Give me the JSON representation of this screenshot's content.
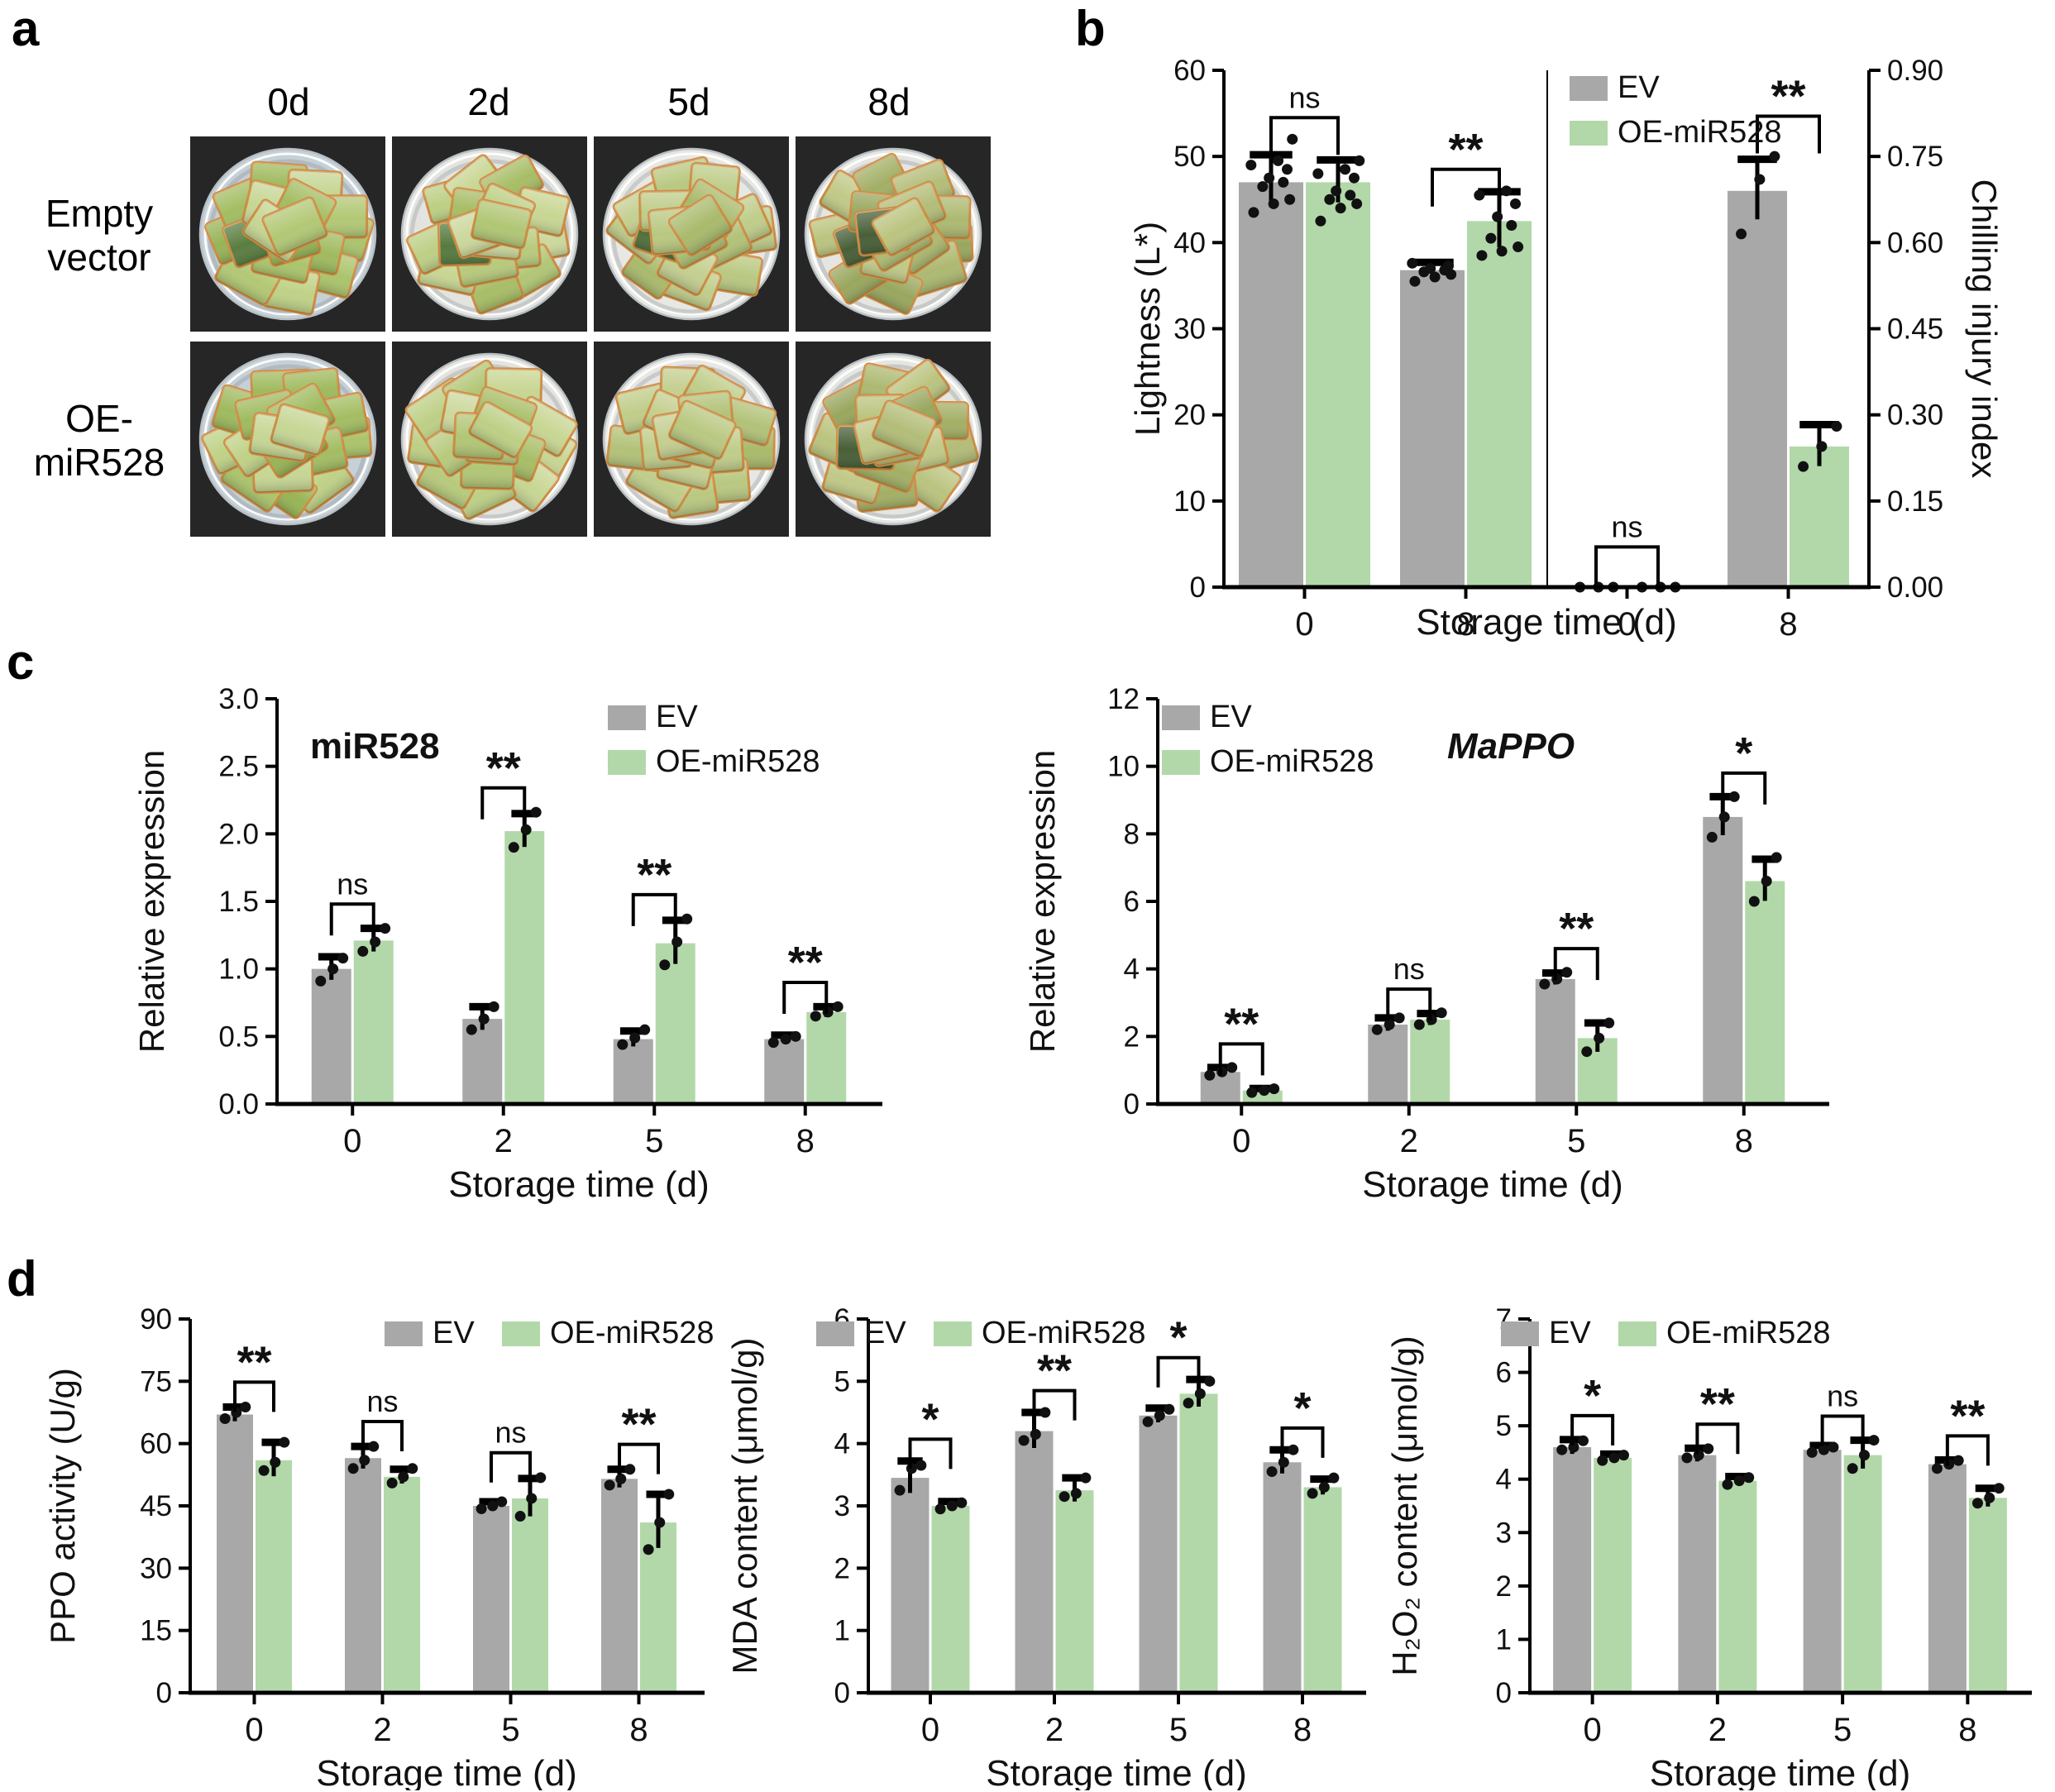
{
  "colors": {
    "ev": "#a8a8a8",
    "oe": "#b2d8a9",
    "dot": "#111111",
    "axis": "#000000"
  },
  "panel_a": {
    "label": "a",
    "col_headers": [
      "0d",
      "2d",
      "5d",
      "8d"
    ],
    "rows": [
      {
        "line1": "Empty",
        "line2": "vector"
      },
      {
        "line1": "OE-",
        "line2": "miR528"
      }
    ]
  },
  "panel_b": {
    "label": "b",
    "xlabel": "Storage time (d)"
  },
  "panel_c": {
    "label": "c"
  },
  "panel_d": {
    "label": "d"
  },
  "chart_data": [
    {
      "id": "b-lightness",
      "type": "bar",
      "ylabel": "Lightness (L*)",
      "xlabel": "",
      "ylim": [
        0,
        60
      ],
      "yticks": [
        0,
        10,
        20,
        30,
        40,
        50,
        60
      ],
      "ydecimals": 0,
      "categories": [
        "0",
        "8"
      ],
      "series": [
        {
          "name": "EV",
          "key": "ev",
          "values": [
            47,
            36.8
          ],
          "errors": [
            3.2,
            0.9
          ],
          "dots": [
            [
              43.5,
              44.5,
              45,
              46.5,
              47,
              47.5,
              48.5,
              49,
              49.5,
              52
            ],
            [
              35.5,
              36,
              36.3,
              36.6,
              36.8,
              37,
              37.3,
              37.6
            ]
          ]
        },
        {
          "name": "OE-miR528",
          "key": "oe",
          "values": [
            47,
            42.5
          ],
          "errors": [
            2.6,
            3.4
          ],
          "dots": [
            [
              42.5,
              44,
              44.5,
              45,
              45.5,
              46,
              47.5,
              48,
              48.5,
              49.5
            ],
            [
              38.5,
              39,
              39.5,
              40.5,
              42,
              43,
              44.5,
              45.5,
              46
            ]
          ]
        }
      ],
      "sig": [
        "ns",
        "**"
      ],
      "sig_pad": 2.5,
      "legend_position": "none"
    },
    {
      "id": "b-chilling",
      "type": "bar",
      "ylabel": "Chilling injury index",
      "xlabel": "",
      "ylim": [
        0,
        0.9
      ],
      "yticks": [
        0,
        0.15,
        0.3,
        0.45,
        0.6,
        0.75,
        0.9
      ],
      "ydecimals": 2,
      "categories": [
        "0",
        "8"
      ],
      "series": [
        {
          "name": "EV",
          "key": "ev",
          "values": [
            0,
            0.69
          ],
          "errors": [
            0,
            0.055
          ],
          "dots": [
            [
              0,
              0,
              0
            ],
            [
              0.615,
              0.71,
              0.75
            ]
          ]
        },
        {
          "name": "OE-miR528",
          "key": "oe",
          "values": [
            0,
            0.245
          ],
          "errors": [
            0,
            0.038
          ],
          "dots": [
            [
              0,
              0,
              0
            ],
            [
              0.21,
              0.245,
              0.28
            ]
          ]
        }
      ],
      "sig": [
        "ns",
        "**"
      ],
      "sig_pad": 0.07,
      "legend_position": "top-left stacked"
    },
    {
      "id": "c-miR528",
      "type": "bar",
      "title": "miR528",
      "title_italic": false,
      "ylabel": "Relative expression",
      "xlabel": "Storage time (d)",
      "ylim": [
        0,
        3
      ],
      "yticks": [
        0,
        0.5,
        1,
        1.5,
        2,
        2.5,
        3
      ],
      "ydecimals": 1,
      "categories": [
        "0",
        "2",
        "5",
        "8"
      ],
      "series": [
        {
          "name": "EV",
          "key": "ev",
          "values": [
            1.0,
            0.63,
            0.48,
            0.48
          ],
          "errors": [
            0.09,
            0.09,
            0.06,
            0.03
          ],
          "dots": [
            [
              0.91,
              1.0,
              1.08
            ],
            [
              0.55,
              0.63,
              0.72
            ],
            [
              0.44,
              0.49,
              0.55
            ],
            [
              0.455,
              0.48,
              0.5
            ]
          ]
        },
        {
          "name": "OE-miR528",
          "key": "oe",
          "values": [
            1.21,
            2.02,
            1.19,
            0.68
          ],
          "errors": [
            0.09,
            0.13,
            0.17,
            0.04
          ],
          "dots": [
            [
              1.13,
              1.2,
              1.3
            ],
            [
              1.9,
              2.03,
              2.16
            ],
            [
              1.03,
              1.2,
              1.37
            ],
            [
              0.65,
              0.68,
              0.72
            ]
          ]
        }
      ],
      "sig": [
        "ns",
        "**",
        "**",
        "**"
      ],
      "sig_pad": 0.18,
      "legend_position": "top-right stacked"
    },
    {
      "id": "c-MaPPO",
      "type": "bar",
      "title": "MaPPO",
      "title_italic": true,
      "ylabel": "Relative expression",
      "xlabel": "Storage time (d)",
      "ylim": [
        0,
        12
      ],
      "yticks": [
        0,
        2,
        4,
        6,
        8,
        10,
        12
      ],
      "ydecimals": 0,
      "categories": [
        "0",
        "2",
        "5",
        "8"
      ],
      "series": [
        {
          "name": "EV",
          "key": "ev",
          "values": [
            0.95,
            2.35,
            3.7,
            8.5
          ],
          "errors": [
            0.13,
            0.2,
            0.18,
            0.6
          ],
          "dots": [
            [
              0.85,
              0.95,
              1.08
            ],
            [
              2.2,
              2.35,
              2.55
            ],
            [
              3.55,
              3.7,
              3.9
            ],
            [
              7.9,
              8.5,
              9.1
            ]
          ]
        },
        {
          "name": "OE-miR528",
          "key": "oe",
          "values": [
            0.4,
            2.5,
            1.95,
            6.6
          ],
          "errors": [
            0.06,
            0.18,
            0.45,
            0.65
          ],
          "dots": [
            [
              0.34,
              0.4,
              0.45
            ],
            [
              2.35,
              2.5,
              2.7
            ],
            [
              1.55,
              1.95,
              2.4
            ],
            [
              6.0,
              6.6,
              7.3
            ]
          ]
        }
      ],
      "sig": [
        "**",
        "ns",
        "**",
        "*"
      ],
      "sig_pad": 0.7,
      "legend_position": "top-left stacked"
    },
    {
      "id": "d-PPO",
      "type": "bar",
      "ylabel": "PPO activity (U/g)",
      "xlabel": "Storage time (d)",
      "ylim": [
        0,
        90
      ],
      "yticks": [
        0,
        15,
        30,
        45,
        60,
        75,
        90
      ],
      "ydecimals": 0,
      "categories": [
        "0",
        "2",
        "5",
        "8"
      ],
      "series": [
        {
          "name": "EV",
          "key": "ev",
          "values": [
            67,
            56.5,
            45,
            51.5
          ],
          "errors": [
            1.8,
            2.8,
            1.0,
            2.3
          ],
          "dots": [
            [
              66,
              67.5,
              68.8
            ],
            [
              54,
              56,
              59.3
            ],
            [
              44.3,
              45,
              46
            ],
            [
              50,
              51.5,
              53.8
            ]
          ]
        },
        {
          "name": "OE-miR528",
          "key": "oe",
          "values": [
            56,
            52,
            46.8,
            41
          ],
          "errors": [
            4.3,
            1.8,
            4.8,
            6.8
          ],
          "dots": [
            [
              53.5,
              55.5,
              60.3
            ],
            [
              50.5,
              52,
              54
            ],
            [
              42.5,
              46.8,
              51.8
            ],
            [
              34.5,
              41,
              47.8
            ]
          ]
        }
      ],
      "sig": [
        "**",
        "ns",
        "ns",
        "**"
      ],
      "sig_pad": 6,
      "legend_position": "top-right horizontal"
    },
    {
      "id": "d-MDA",
      "type": "bar",
      "ylabel": "MDA content (μmol/g)",
      "xlabel": "Storage time (d)",
      "ylim": [
        0,
        6
      ],
      "yticks": [
        0,
        1,
        2,
        3,
        4,
        5,
        6
      ],
      "ydecimals": 0,
      "categories": [
        "0",
        "2",
        "5",
        "8"
      ],
      "series": [
        {
          "name": "EV",
          "key": "ev",
          "values": [
            3.45,
            4.2,
            4.45,
            3.7
          ],
          "errors": [
            0.27,
            0.3,
            0.12,
            0.2
          ],
          "dots": [
            [
              3.25,
              3.6,
              3.65
            ],
            [
              4.05,
              4.15,
              4.5
            ],
            [
              4.35,
              4.45,
              4.55
            ],
            [
              3.55,
              3.7,
              3.9
            ]
          ]
        },
        {
          "name": "OE-miR528",
          "key": "oe",
          "values": [
            3.0,
            3.25,
            4.8,
            3.3
          ],
          "errors": [
            0.07,
            0.2,
            0.23,
            0.13
          ],
          "dots": [
            [
              2.95,
              3.0,
              3.05
            ],
            [
              3.15,
              3.2,
              3.45
            ],
            [
              4.65,
              4.8,
              5.0
            ],
            [
              3.2,
              3.3,
              3.45
            ]
          ]
        }
      ],
      "sig": [
        "*",
        "**",
        "*",
        "*"
      ],
      "sig_pad": 0.35,
      "legend_position": "top-left horizontal"
    },
    {
      "id": "d-H2O2",
      "type": "bar",
      "ylabel": "H₂O₂ content (μmol/g)",
      "xlabel": "Storage time (d)",
      "ylim": [
        0,
        7
      ],
      "yticks": [
        0,
        1,
        2,
        3,
        4,
        5,
        6,
        7
      ],
      "ydecimals": 0,
      "categories": [
        "0",
        "2",
        "5",
        "8"
      ],
      "series": [
        {
          "name": "EV",
          "key": "ev",
          "values": [
            4.6,
            4.45,
            4.55,
            4.28
          ],
          "errors": [
            0.14,
            0.13,
            0.08,
            0.08
          ],
          "dots": [
            [
              4.55,
              4.6,
              4.72
            ],
            [
              4.4,
              4.45,
              4.57
            ],
            [
              4.5,
              4.55,
              4.6
            ],
            [
              4.2,
              4.28,
              4.35
            ]
          ]
        },
        {
          "name": "OE-miR528",
          "key": "oe",
          "values": [
            4.4,
            3.97,
            4.45,
            3.65
          ],
          "errors": [
            0.07,
            0.08,
            0.28,
            0.18
          ],
          "dots": [
            [
              4.35,
              4.4,
              4.45
            ],
            [
              3.9,
              3.97,
              4.03
            ],
            [
              4.2,
              4.45,
              4.73
            ],
            [
              3.55,
              3.65,
              3.83
            ]
          ]
        }
      ],
      "sig": [
        "*",
        "**",
        "ns",
        "**"
      ],
      "sig_pad": 0.45,
      "legend_position": "top-left horizontal"
    }
  ]
}
